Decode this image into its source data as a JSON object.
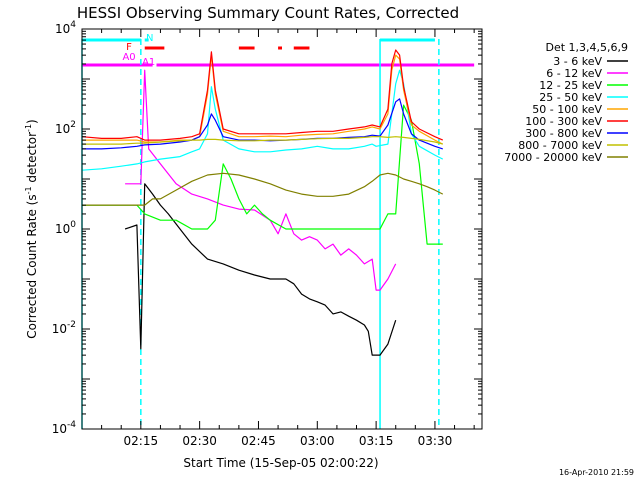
{
  "chart_data": {
    "type": "line",
    "title": "HESSI Observing Summary Count Rates, Corrected",
    "xlabel": "Start Time (15-Sep-05 02:00:22)",
    "ylabel": "Corrected Count Rate (s^-1 detector^-1)",
    "ylabel_main": "Corrected Count Rate (s",
    "ylabel_sup1": "-1",
    "ylabel_mid": " detector",
    "ylabel_sup2": "-1",
    "ylabel_end": ")",
    "yscale": "log",
    "ylim": [
      0.0001,
      10000
    ],
    "xlim_minutes": [
      0,
      102
    ],
    "y_tick_labels": [
      {
        "value": 0.0001,
        "base": "10",
        "exp": "-4"
      },
      {
        "value": 0.01,
        "base": "10",
        "exp": "-2"
      },
      {
        "value": 1,
        "base": "10",
        "exp": "0"
      },
      {
        "value": 100,
        "base": "10",
        "exp": "2"
      },
      {
        "value": 10000,
        "base": "10",
        "exp": "4"
      }
    ],
    "x_tick_labels": [
      {
        "label": "02:15",
        "minutes": 15
      },
      {
        "label": "02:30",
        "minutes": 30
      },
      {
        "label": "02:45",
        "minutes": 45
      },
      {
        "label": "03:00",
        "minutes": 60
      },
      {
        "label": "03:15",
        "minutes": 75
      },
      {
        "label": "03:30",
        "minutes": 90
      }
    ],
    "legend_title": "Det 1,3,4,5,6,9",
    "series": [
      {
        "name": "3 - 6 keV",
        "color": "#000000",
        "points": [
          [
            11,
            1
          ],
          [
            14,
            1.2
          ],
          [
            15,
            0.004
          ],
          [
            16,
            8
          ],
          [
            18,
            5
          ],
          [
            20,
            3
          ],
          [
            22,
            2
          ],
          [
            25,
            1
          ],
          [
            28,
            0.5
          ],
          [
            32,
            0.25
          ],
          [
            36,
            0.2
          ],
          [
            40,
            0.15
          ],
          [
            44,
            0.12
          ],
          [
            48,
            0.1
          ],
          [
            52,
            0.1
          ],
          [
            54,
            0.08
          ],
          [
            56,
            0.05
          ],
          [
            58,
            0.04
          ],
          [
            60,
            0.035
          ],
          [
            62,
            0.03
          ],
          [
            64,
            0.02
          ],
          [
            66,
            0.022
          ],
          [
            68,
            0.018
          ],
          [
            70,
            0.015
          ],
          [
            72,
            0.012
          ],
          [
            73,
            0.009
          ],
          [
            74,
            0.003
          ],
          [
            76,
            0.003
          ],
          [
            78,
            0.005
          ],
          [
            80,
            0.015
          ]
        ]
      },
      {
        "name": "6 - 12 keV",
        "color": "#ff00ff",
        "points": [
          [
            11,
            8
          ],
          [
            14,
            8
          ],
          [
            15,
            8
          ],
          [
            16,
            1500
          ],
          [
            17,
            40
          ],
          [
            20,
            20
          ],
          [
            24,
            8
          ],
          [
            28,
            5
          ],
          [
            32,
            4
          ],
          [
            36,
            3
          ],
          [
            40,
            2.5
          ],
          [
            44,
            2.4
          ],
          [
            48,
            1.5
          ],
          [
            50,
            0.8
          ],
          [
            52,
            2
          ],
          [
            54,
            0.8
          ],
          [
            56,
            0.6
          ],
          [
            58,
            0.7
          ],
          [
            60,
            0.6
          ],
          [
            62,
            0.4
          ],
          [
            64,
            0.5
          ],
          [
            66,
            0.3
          ],
          [
            68,
            0.4
          ],
          [
            70,
            0.3
          ],
          [
            72,
            0.2
          ],
          [
            74,
            0.25
          ],
          [
            75,
            0.06
          ],
          [
            76,
            0.06
          ],
          [
            78,
            0.1
          ],
          [
            80,
            0.2
          ]
        ]
      },
      {
        "name": "12 - 25 keV",
        "color": "#00ff00",
        "points": [
          [
            0,
            3
          ],
          [
            11,
            3
          ],
          [
            14,
            3
          ],
          [
            16,
            2
          ],
          [
            20,
            1.5
          ],
          [
            24,
            1.5
          ],
          [
            28,
            1
          ],
          [
            32,
            1
          ],
          [
            34,
            1.5
          ],
          [
            36,
            20
          ],
          [
            38,
            10
          ],
          [
            40,
            4
          ],
          [
            42,
            2
          ],
          [
            44,
            3
          ],
          [
            46,
            2
          ],
          [
            48,
            1.5
          ],
          [
            52,
            1
          ],
          [
            56,
            1
          ],
          [
            60,
            1
          ],
          [
            64,
            1
          ],
          [
            68,
            1
          ],
          [
            72,
            1
          ],
          [
            74,
            1
          ],
          [
            76,
            1
          ],
          [
            78,
            2
          ],
          [
            80,
            2
          ],
          [
            82,
            300
          ],
          [
            84,
            150
          ],
          [
            86,
            20
          ],
          [
            88,
            0.5
          ],
          [
            92,
            0.5
          ]
        ]
      },
      {
        "name": "25 - 50 keV",
        "color": "#00ffff",
        "points": [
          [
            0,
            15
          ],
          [
            5,
            16
          ],
          [
            10,
            18
          ],
          [
            14,
            20
          ],
          [
            16,
            22
          ],
          [
            20,
            25
          ],
          [
            25,
            28
          ],
          [
            28,
            35
          ],
          [
            30,
            40
          ],
          [
            32,
            80
          ],
          [
            33,
            700
          ],
          [
            34,
            250
          ],
          [
            36,
            60
          ],
          [
            40,
            40
          ],
          [
            44,
            35
          ],
          [
            48,
            35
          ],
          [
            52,
            38
          ],
          [
            56,
            40
          ],
          [
            60,
            45
          ],
          [
            64,
            40
          ],
          [
            68,
            40
          ],
          [
            72,
            45
          ],
          [
            74,
            50
          ],
          [
            75,
            45
          ],
          [
            78,
            50
          ],
          [
            80,
            800
          ],
          [
            81,
            1500
          ],
          [
            82,
            800
          ],
          [
            84,
            80
          ],
          [
            86,
            45
          ],
          [
            90,
            30
          ],
          [
            92,
            25
          ]
        ]
      },
      {
        "name": "50 - 100 keV",
        "color": "#ffa500",
        "points": [
          [
            0,
            60
          ],
          [
            5,
            60
          ],
          [
            10,
            60
          ],
          [
            14,
            60
          ],
          [
            16,
            55
          ],
          [
            20,
            55
          ],
          [
            25,
            60
          ],
          [
            28,
            60
          ],
          [
            30,
            70
          ],
          [
            32,
            500
          ],
          [
            33,
            3000
          ],
          [
            34,
            500
          ],
          [
            36,
            90
          ],
          [
            40,
            70
          ],
          [
            44,
            70
          ],
          [
            48,
            72
          ],
          [
            52,
            70
          ],
          [
            56,
            75
          ],
          [
            60,
            78
          ],
          [
            64,
            80
          ],
          [
            68,
            90
          ],
          [
            72,
            100
          ],
          [
            74,
            110
          ],
          [
            76,
            100
          ],
          [
            78,
            200
          ],
          [
            79,
            1500
          ],
          [
            80,
            3000
          ],
          [
            81,
            2500
          ],
          [
            82,
            600
          ],
          [
            84,
            120
          ],
          [
            86,
            90
          ],
          [
            90,
            60
          ],
          [
            92,
            50
          ]
        ]
      },
      {
        "name": "100 - 300 keV",
        "color": "#ff0000",
        "points": [
          [
            0,
            70
          ],
          [
            5,
            65
          ],
          [
            10,
            65
          ],
          [
            14,
            70
          ],
          [
            16,
            60
          ],
          [
            20,
            60
          ],
          [
            25,
            65
          ],
          [
            28,
            70
          ],
          [
            30,
            80
          ],
          [
            32,
            600
          ],
          [
            33,
            3500
          ],
          [
            34,
            600
          ],
          [
            36,
            100
          ],
          [
            40,
            80
          ],
          [
            44,
            80
          ],
          [
            48,
            80
          ],
          [
            52,
            80
          ],
          [
            56,
            85
          ],
          [
            60,
            90
          ],
          [
            64,
            90
          ],
          [
            68,
            100
          ],
          [
            72,
            110
          ],
          [
            74,
            120
          ],
          [
            76,
            110
          ],
          [
            78,
            250
          ],
          [
            79,
            2000
          ],
          [
            80,
            3800
          ],
          [
            81,
            3000
          ],
          [
            82,
            700
          ],
          [
            84,
            140
          ],
          [
            86,
            100
          ],
          [
            90,
            70
          ],
          [
            92,
            60
          ]
        ]
      },
      {
        "name": "300 - 800 keV",
        "color": "#0000ff",
        "points": [
          [
            0,
            40
          ],
          [
            5,
            40
          ],
          [
            10,
            42
          ],
          [
            14,
            45
          ],
          [
            16,
            48
          ],
          [
            20,
            50
          ],
          [
            25,
            55
          ],
          [
            28,
            60
          ],
          [
            30,
            70
          ],
          [
            32,
            120
          ],
          [
            33,
            200
          ],
          [
            34,
            150
          ],
          [
            36,
            70
          ],
          [
            40,
            60
          ],
          [
            44,
            60
          ],
          [
            48,
            58
          ],
          [
            52,
            60
          ],
          [
            56,
            62
          ],
          [
            60,
            65
          ],
          [
            64,
            65
          ],
          [
            68,
            68
          ],
          [
            72,
            70
          ],
          [
            74,
            75
          ],
          [
            76,
            72
          ],
          [
            78,
            120
          ],
          [
            80,
            350
          ],
          [
            81,
            400
          ],
          [
            82,
            200
          ],
          [
            84,
            80
          ],
          [
            86,
            60
          ],
          [
            90,
            45
          ],
          [
            92,
            40
          ]
        ]
      },
      {
        "name": "800 - 7000 keV",
        "color": "#c0c000",
        "points": [
          [
            0,
            50
          ],
          [
            5,
            50
          ],
          [
            10,
            50
          ],
          [
            14,
            52
          ],
          [
            16,
            52
          ],
          [
            20,
            55
          ],
          [
            25,
            58
          ],
          [
            28,
            60
          ],
          [
            30,
            60
          ],
          [
            32,
            62
          ],
          [
            34,
            62
          ],
          [
            36,
            60
          ],
          [
            40,
            58
          ],
          [
            44,
            58
          ],
          [
            48,
            60
          ],
          [
            52,
            60
          ],
          [
            56,
            62
          ],
          [
            60,
            64
          ],
          [
            64,
            65
          ],
          [
            68,
            65
          ],
          [
            72,
            68
          ],
          [
            74,
            70
          ],
          [
            76,
            70
          ],
          [
            78,
            68
          ],
          [
            80,
            70
          ],
          [
            82,
            68
          ],
          [
            84,
            65
          ],
          [
            86,
            62
          ],
          [
            90,
            55
          ],
          [
            92,
            50
          ]
        ]
      },
      {
        "name": "7000 - 20000 keV",
        "color": "#808000",
        "points": [
          [
            0,
            3
          ],
          [
            5,
            3
          ],
          [
            10,
            3
          ],
          [
            14,
            3
          ],
          [
            16,
            3
          ],
          [
            18,
            4
          ],
          [
            20,
            4
          ],
          [
            24,
            6
          ],
          [
            28,
            9
          ],
          [
            32,
            12
          ],
          [
            36,
            13
          ],
          [
            40,
            12
          ],
          [
            44,
            10
          ],
          [
            48,
            8
          ],
          [
            52,
            6
          ],
          [
            56,
            5
          ],
          [
            60,
            4.5
          ],
          [
            64,
            4.5
          ],
          [
            68,
            5
          ],
          [
            72,
            7
          ],
          [
            74,
            9
          ],
          [
            76,
            12
          ],
          [
            78,
            13
          ],
          [
            80,
            12
          ],
          [
            82,
            10
          ],
          [
            84,
            9
          ],
          [
            86,
            8
          ],
          [
            88,
            7
          ],
          [
            90,
            6
          ],
          [
            92,
            5
          ]
        ]
      }
    ],
    "flag_bars": [
      {
        "label": "N",
        "color": "#00ffff",
        "segments": [
          [
            0,
            15
          ],
          [
            16,
            17
          ],
          [
            76,
            90
          ]
        ]
      },
      {
        "label": "F",
        "color": "#ff0000",
        "segments": [
          [
            16,
            21
          ],
          [
            40,
            44
          ],
          [
            50,
            51
          ],
          [
            54,
            58
          ]
        ]
      },
      {
        "label": "A0",
        "color": "#ff00ff",
        "segments": [
          [
            0,
            18
          ],
          [
            19,
            100
          ]
        ]
      },
      {
        "label": "A1",
        "color": "#ff00ff",
        "segments": []
      }
    ],
    "vertical_markers_minutes": [
      0,
      15,
      76,
      91
    ],
    "timestamp": "16-Apr-2010 21:59"
  }
}
